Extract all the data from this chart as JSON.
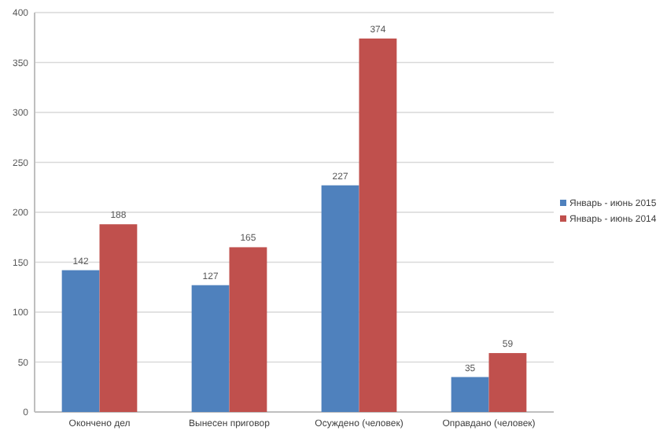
{
  "chart_data": {
    "type": "bar",
    "categories": [
      "Окончено дел",
      "Вынесен приговор",
      "Осуждено (человек)",
      "Оправдано (человек)"
    ],
    "series": [
      {
        "name": "Январь - июнь 2015",
        "color": "#4f81bd",
        "values": [
          142,
          127,
          227,
          35
        ]
      },
      {
        "name": "Январь - июнь 2014",
        "color": "#c0504d",
        "values": [
          188,
          165,
          374,
          59
        ]
      }
    ],
    "ylim": [
      0,
      400
    ],
    "yticks": [
      0,
      50,
      100,
      150,
      200,
      250,
      300,
      350,
      400
    ],
    "grid": "y",
    "legend": "right",
    "data_labels": true
  }
}
